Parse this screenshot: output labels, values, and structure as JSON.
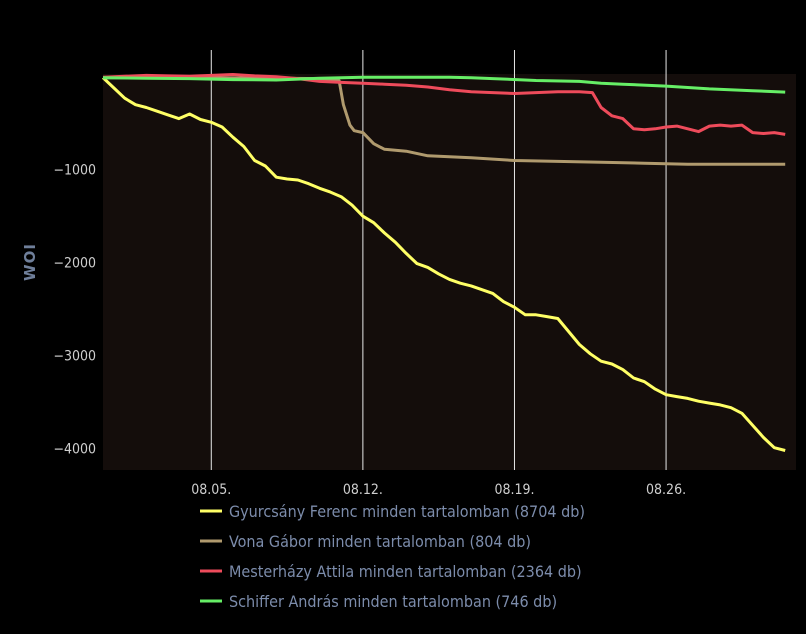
{
  "chart_data": {
    "type": "line",
    "title": "",
    "xlabel": "",
    "ylabel": "WOI",
    "x_ticks": [
      "08.05.",
      "08.12.",
      "08.19.",
      "08.26."
    ],
    "y_ticks": [
      -1000,
      -2000,
      -3000,
      -4000
    ],
    "xlim": [
      "07.31.",
      "09.01."
    ],
    "ylim": [
      -4230,
      30
    ],
    "grid": "vertical",
    "legend_position": "bottom",
    "series": [
      {
        "name": "Gyurcsány Ferenc minden tartalomban (8704 db)",
        "color": "#ffff66",
        "x": [
          0,
          0.5,
          1,
          1.5,
          2,
          2.5,
          3,
          3.5,
          4,
          4.5,
          5,
          5.5,
          6,
          6.5,
          7,
          7.5,
          8,
          8.5,
          9,
          9.5,
          10,
          10.5,
          11,
          11.5,
          12,
          12.5,
          13,
          13.5,
          14,
          14.5,
          15,
          15.5,
          16,
          16.5,
          17,
          17.5,
          18,
          18.5,
          19,
          19.5,
          20,
          20.5,
          21,
          21.5,
          22,
          22.5,
          23,
          23.5,
          24,
          24.5,
          25,
          25.5,
          26,
          26.5,
          27,
          27.5,
          28,
          28.5,
          29,
          29.5,
          30,
          30.5,
          31,
          31.5
        ],
        "values": [
          -10,
          -120,
          -230,
          -300,
          -330,
          -370,
          -410,
          -450,
          -400,
          -460,
          -490,
          -540,
          -650,
          -750,
          -900,
          -960,
          -1080,
          -1100,
          -1110,
          -1150,
          -1200,
          -1240,
          -1290,
          -1380,
          -1500,
          -1570,
          -1680,
          -1780,
          -1900,
          -2010,
          -2050,
          -2120,
          -2180,
          -2220,
          -2250,
          -2290,
          -2330,
          -2420,
          -2480,
          -2560,
          -2560,
          -2580,
          -2600,
          -2740,
          -2880,
          -2980,
          -3060,
          -3090,
          -3150,
          -3240,
          -3280,
          -3360,
          -3420,
          -3440,
          -3460,
          -3490,
          -3510,
          -3530,
          -3560,
          -3620,
          -3750,
          -3880,
          -3990,
          -4020
        ]
      },
      {
        "name": "Vona Gábor minden tartalomban (804 db)",
        "color": "#b09a6e",
        "x": [
          0,
          5,
          10,
          10.9,
          11.1,
          11.4,
          11.6,
          12,
          12.5,
          13,
          14,
          15,
          17,
          19,
          21,
          23,
          25,
          27,
          29,
          31.5
        ],
        "values": [
          -10,
          -10,
          -20,
          -40,
          -300,
          -520,
          -580,
          -600,
          -720,
          -780,
          -800,
          -850,
          -870,
          -900,
          -910,
          -920,
          -930,
          -940,
          -940,
          -940
        ]
      },
      {
        "name": "Mesterházy Attila minden tartalomban (2364 db)",
        "color": "#ee4b5b",
        "x": [
          0,
          1,
          2,
          3,
          4,
          5,
          6,
          7,
          8,
          9,
          10,
          11,
          12,
          13,
          14,
          15,
          16,
          17,
          18,
          19,
          20,
          21,
          22,
          22.6,
          23,
          23.5,
          24,
          24.5,
          25,
          25.5,
          26,
          26.5,
          27,
          27.5,
          28,
          28.5,
          29,
          29.5,
          30,
          30.5,
          31,
          31.5
        ],
        "values": [
          -5,
          5,
          15,
          10,
          5,
          15,
          25,
          10,
          0,
          -20,
          -50,
          -60,
          -70,
          -80,
          -90,
          -110,
          -140,
          -160,
          -170,
          -180,
          -170,
          -160,
          -160,
          -170,
          -330,
          -420,
          -450,
          -560,
          -570,
          -560,
          -540,
          -530,
          -560,
          -590,
          -530,
          -520,
          -530,
          -520,
          -600,
          -610,
          -600,
          -620
        ]
      },
      {
        "name": "Schiffer András minden tartalomban (746 db)",
        "color": "#66ee66",
        "x": [
          0,
          2,
          4,
          6,
          8,
          10,
          12,
          14,
          16,
          17,
          18,
          20,
          22,
          23,
          24,
          26,
          28,
          30,
          31.5
        ],
        "values": [
          -10,
          -15,
          -20,
          -30,
          -35,
          -15,
          -5,
          -5,
          -5,
          -10,
          -20,
          -40,
          -50,
          -70,
          -80,
          -100,
          -130,
          -150,
          -165
        ]
      }
    ]
  }
}
